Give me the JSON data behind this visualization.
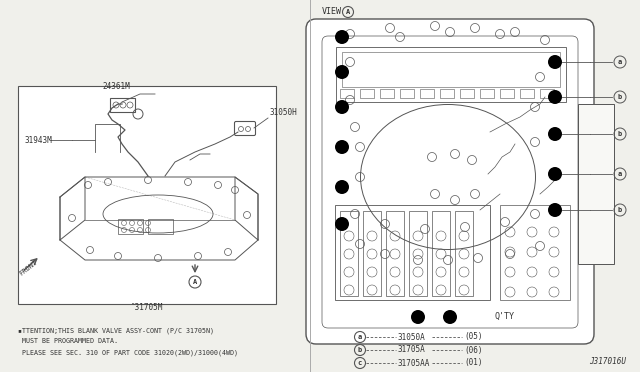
{
  "bg_color": "#f0f0eb",
  "line_color": "#555555",
  "text_color": "#333333",
  "attention_text": [
    "▪TTENTION;THIS BLANK VALVE ASSY-CONT (P/C 31705N)",
    "MUST BE PROGRAMMED DATA.",
    "PLEASE SEE SEC. 310 OF PART CODE 31020(2WD)/31000(4WD)"
  ],
  "qty_header": "Q'TY",
  "legend": [
    {
      "sym": "a",
      "part": "31050A",
      "qty": "(05)"
    },
    {
      "sym": "b",
      "part": "31705A",
      "qty": "(06)"
    },
    {
      "sym": "c",
      "part": "31705AA",
      "qty": "(01)"
    }
  ],
  "diagram_id": "J317016U",
  "left_part_label": "‶31705M",
  "label_24361M": "24361M",
  "label_31050H": "31050H",
  "label_31943M": "31943M",
  "view_label": "VIEW",
  "front_label": "FRONT"
}
